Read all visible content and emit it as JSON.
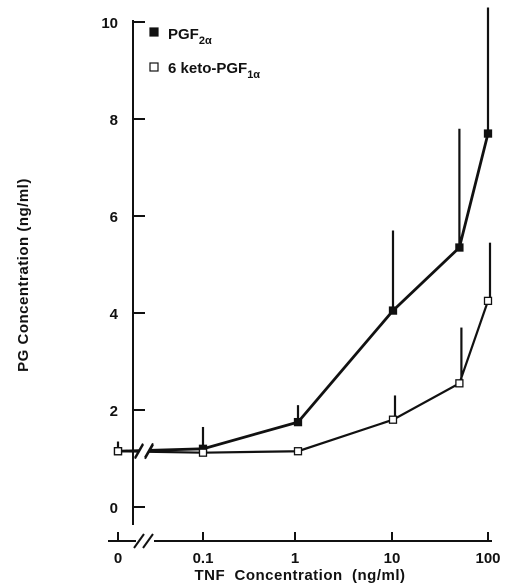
{
  "chart_data": {
    "type": "line",
    "xlabel": "TNF  Concentration  (ng/ml)",
    "ylabel": "PG  Concentration  (ng/ml)",
    "x_tick_labels": [
      "0",
      "0.1",
      "1",
      "10",
      "100"
    ],
    "y_tick_labels": [
      "0",
      "2",
      "4",
      "6",
      "8",
      "10"
    ],
    "ylim": [
      0,
      10
    ],
    "x_scale": "log (0 shown with axis break)",
    "grid": false,
    "legend_position": "top-left",
    "x": [
      0,
      0.1,
      1,
      10,
      50,
      100
    ],
    "series": [
      {
        "name": "PGF",
        "name_sub": "2α",
        "marker": "filled-square",
        "values": [
          1.15,
          1.2,
          1.75,
          4.05,
          5.35,
          7.7
        ],
        "error_upper": [
          1.35,
          1.65,
          2.1,
          5.7,
          7.8,
          10.3
        ]
      },
      {
        "name": "6 keto-PGF",
        "name_sub": "1α",
        "marker": "open-square",
        "values": [
          1.15,
          1.12,
          1.15,
          1.8,
          2.55,
          4.25
        ],
        "error_upper": [
          1.15,
          1.12,
          1.15,
          2.3,
          3.7,
          5.45
        ]
      }
    ]
  }
}
